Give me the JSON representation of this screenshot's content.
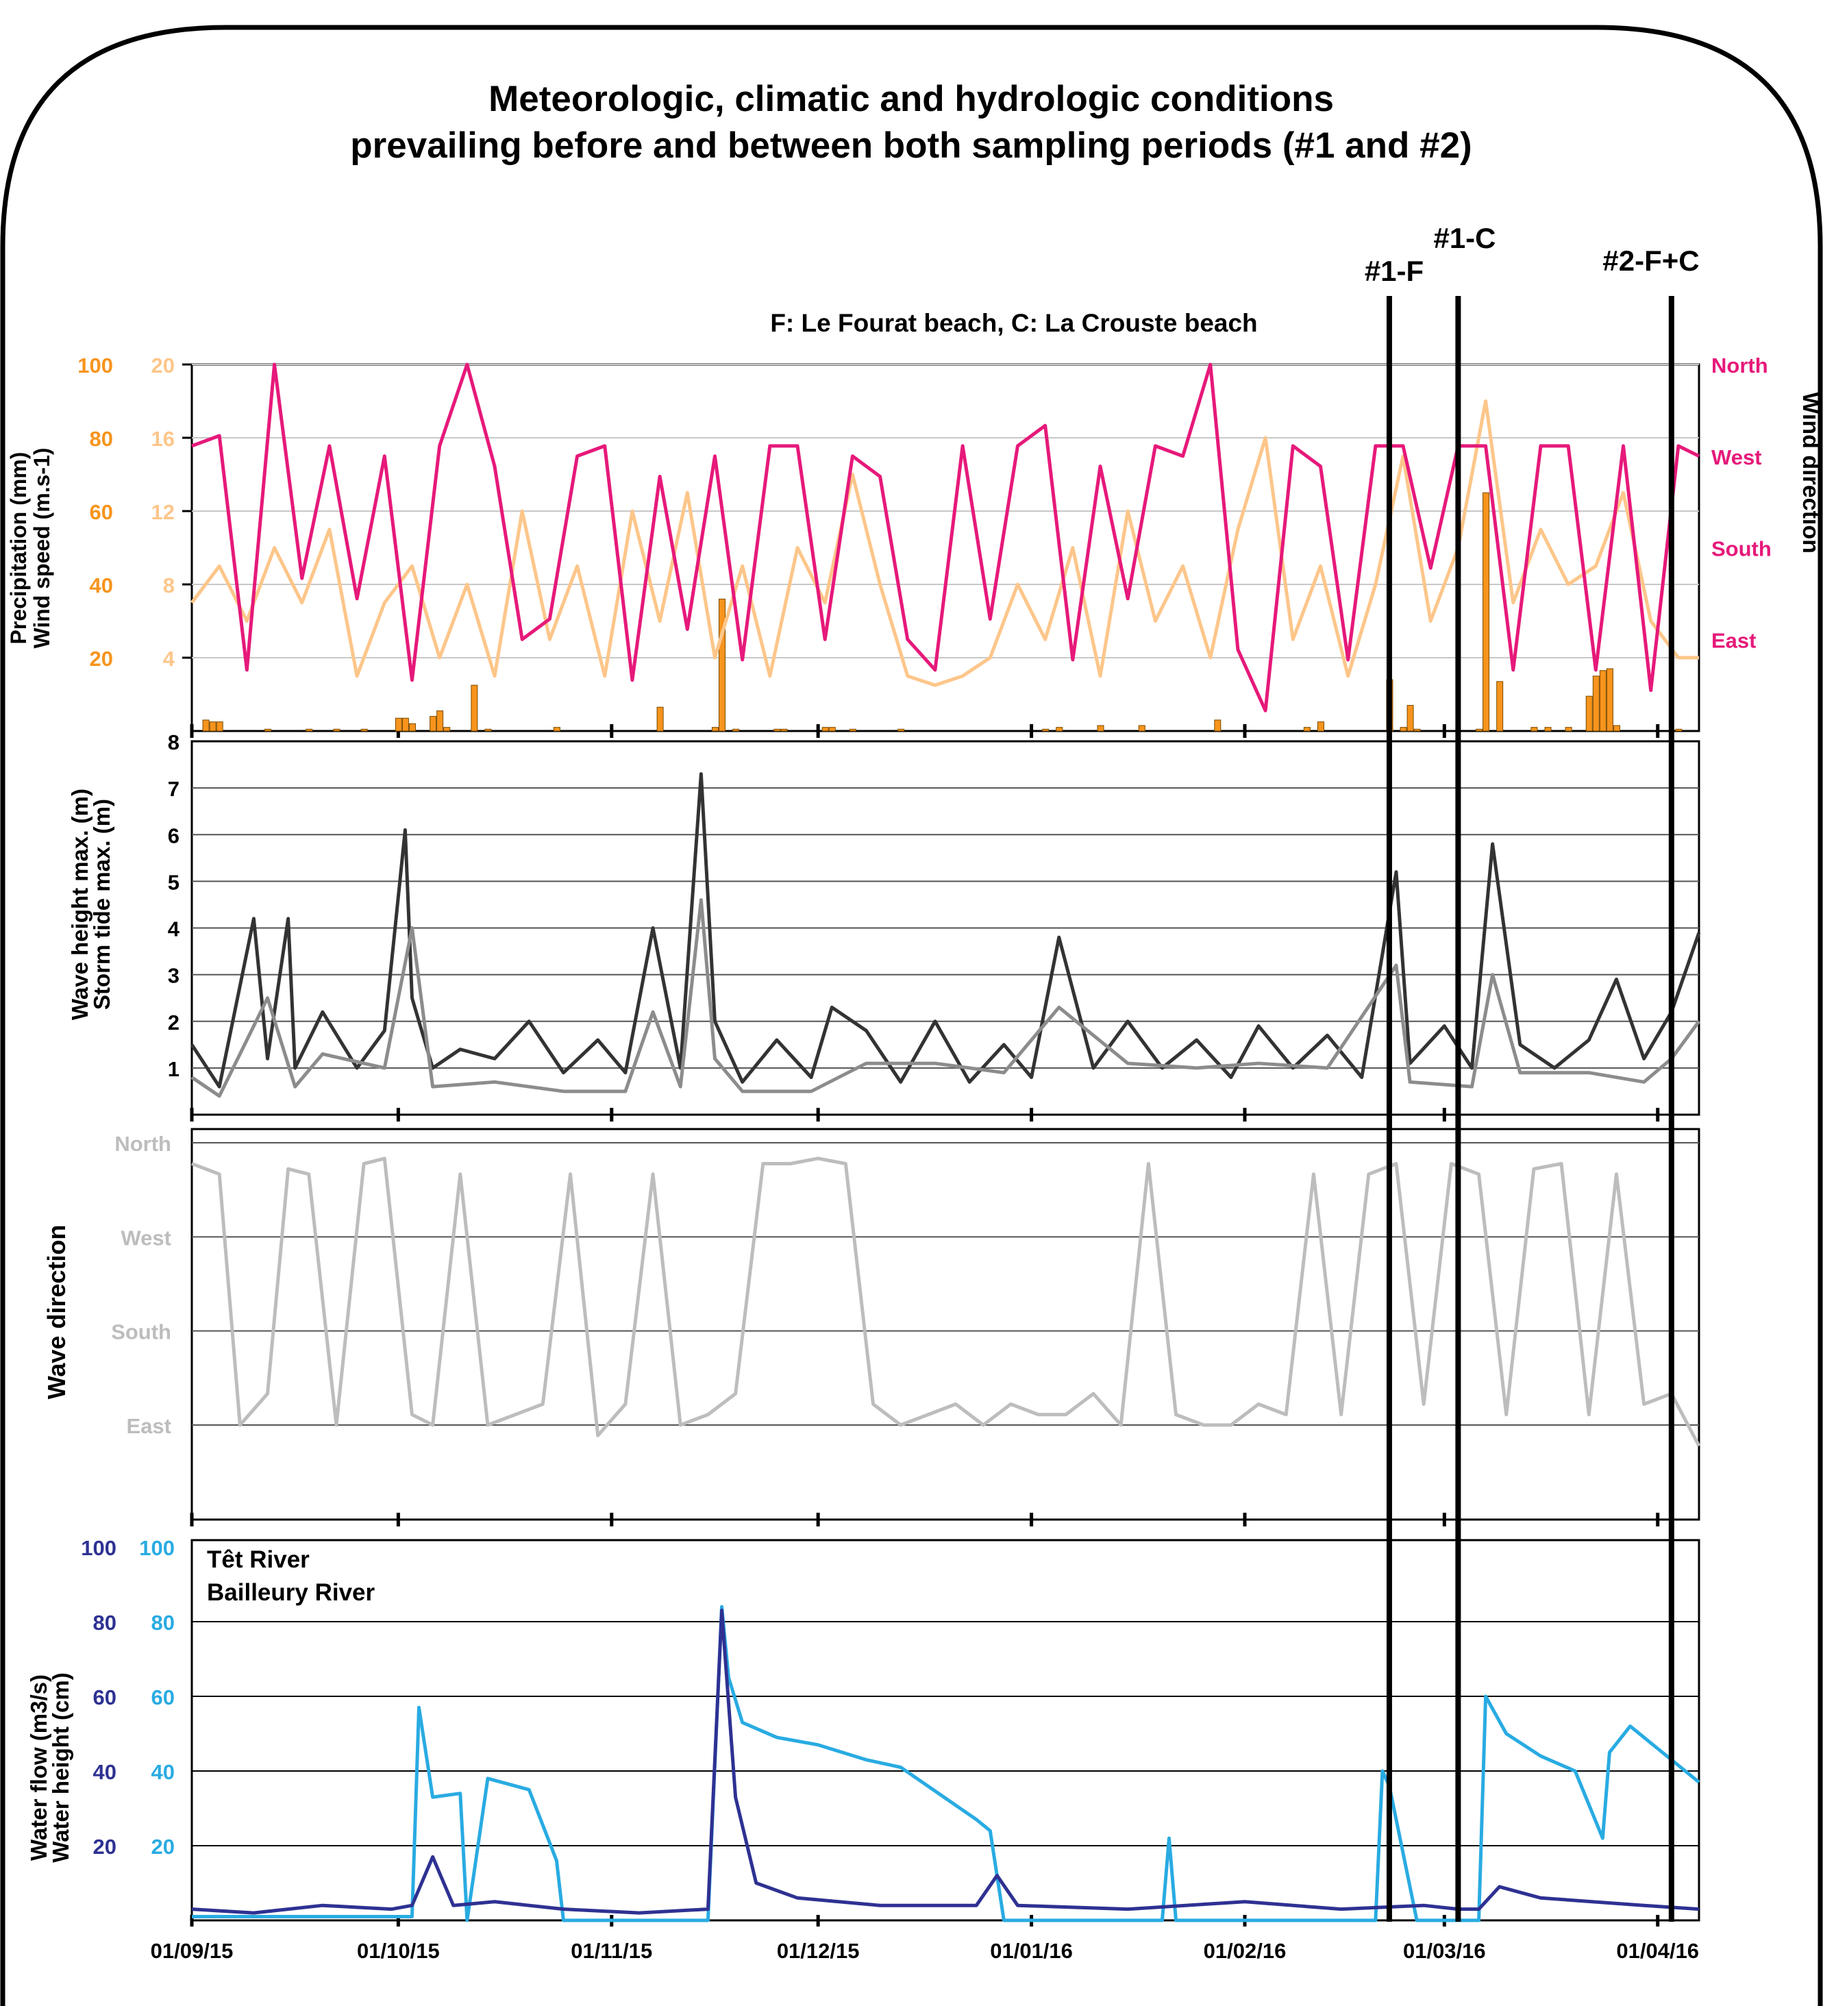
{
  "title_line1": "Meteorologic, climatic and hydrologic conditions",
  "title_line2": "prevailing before and between both sampling periods (#1 and #2)",
  "legend_beaches": "F: Le Fourat beach, C: La Crouste beach",
  "colors": {
    "precipitation": "#f7941d",
    "wind_speed": "#fdc68a",
    "wind_direction": "#e6197a",
    "wave_height": "#333333",
    "storm_tide": "#8c8c8c",
    "wave_direction": "#bdbdbd",
    "tet": "#2e3192",
    "bailleury": "#29abe2"
  },
  "chart_data": [
    {
      "type": "line",
      "panel": "meteorology",
      "x_range": [
        "2015-09-01",
        "2016-04-07"
      ],
      "x_tick_labels": [
        "01/09/15",
        "01/10/15",
        "01/11/15",
        "01/12/15",
        "01/01/16",
        "01/02/16",
        "01/03/16",
        "01/04/16"
      ],
      "y_left_label": "Precipitation (mm)",
      "y_left_range": [
        0,
        100
      ],
      "y_left_ticks": [
        "20",
        "40",
        "60",
        "80",
        "100"
      ],
      "y_left2_label": "Wind speed (m.s-1)",
      "y_left2_range": [
        0,
        20
      ],
      "y_left2_ticks": [
        "4",
        "8",
        "12",
        "16",
        "20"
      ],
      "y_right_label": "Wind direction",
      "y_right_ticks": [
        "North",
        "West",
        "South",
        "East"
      ],
      "series": [
        {
          "name": "Precipitation (mm)",
          "kind": "bar",
          "x": [
            "2015-09-03",
            "2015-09-04",
            "2015-09-05",
            "2015-09-12",
            "2015-09-18",
            "2015-09-22",
            "2015-09-26",
            "2015-10-01",
            "2015-10-02",
            "2015-10-03",
            "2015-10-06",
            "2015-10-07",
            "2015-10-08",
            "2015-10-12",
            "2015-10-14",
            "2015-10-24",
            "2015-11-08",
            "2015-11-16",
            "2015-11-17",
            "2015-11-19",
            "2015-11-25",
            "2015-11-26",
            "2015-12-02",
            "2015-12-03",
            "2015-12-06",
            "2015-12-13",
            "2016-01-03",
            "2016-01-05",
            "2016-01-11",
            "2016-01-17",
            "2016-01-28",
            "2016-02-10",
            "2016-02-12",
            "2016-02-22",
            "2016-02-24",
            "2016-02-25",
            "2016-02-26",
            "2016-03-06",
            "2016-03-07",
            "2016-03-09",
            "2016-03-14",
            "2016-03-16",
            "2016-03-19",
            "2016-03-22",
            "2016-03-23",
            "2016-03-24",
            "2016-03-25",
            "2016-03-26",
            "2016-04-04"
          ],
          "values": [
            3,
            2.5,
            2.5,
            0.5,
            0.5,
            0.5,
            0.5,
            3.5,
            3.5,
            2,
            4,
            5.5,
            1,
            12.5,
            0.5,
            1,
            6.5,
            1,
            36,
            0.5,
            0.5,
            0.5,
            1,
            1,
            0.5,
            0.5,
            0.5,
            1,
            1.5,
            1.5,
            3,
            1,
            2.5,
            14,
            1,
            7,
            0.5,
            0.5,
            65,
            13.5,
            1,
            1,
            1,
            9.5,
            15,
            16.5,
            17,
            1.5,
            0.5
          ]
        },
        {
          "name": "Wind speed (m.s-1)",
          "kind": "line",
          "x": [
            "2015-09-01",
            "2015-09-05",
            "2015-09-09",
            "2015-09-13",
            "2015-09-17",
            "2015-09-21",
            "2015-09-25",
            "2015-09-29",
            "2015-10-03",
            "2015-10-07",
            "2015-10-11",
            "2015-10-15",
            "2015-10-19",
            "2015-10-23",
            "2015-10-27",
            "2015-10-31",
            "2015-11-04",
            "2015-11-08",
            "2015-11-12",
            "2015-11-16",
            "2015-11-20",
            "2015-11-24",
            "2015-11-28",
            "2015-12-02",
            "2015-12-06",
            "2015-12-10",
            "2015-12-14",
            "2015-12-18",
            "2015-12-22",
            "2015-12-26",
            "2015-12-30",
            "2016-01-03",
            "2016-01-07",
            "2016-01-11",
            "2016-01-15",
            "2016-01-19",
            "2016-01-23",
            "2016-01-27",
            "2016-01-31",
            "2016-02-04",
            "2016-02-08",
            "2016-02-12",
            "2016-02-16",
            "2016-02-20",
            "2016-02-24",
            "2016-02-28",
            "2016-03-03",
            "2016-03-07",
            "2016-03-11",
            "2016-03-15",
            "2016-03-19",
            "2016-03-23",
            "2016-03-27",
            "2016-03-31",
            "2016-04-04",
            "2016-04-07"
          ],
          "values": [
            7,
            9,
            6,
            10,
            7,
            11,
            3,
            7,
            9,
            4,
            8,
            3,
            12,
            5,
            9,
            3,
            12,
            6,
            13,
            4,
            9,
            3,
            10,
            7,
            14,
            8,
            3,
            2.5,
            3,
            4,
            8,
            5,
            10,
            3,
            12,
            6,
            9,
            4,
            11,
            16,
            5,
            9,
            3,
            8,
            15,
            6,
            10,
            18,
            7,
            11,
            8,
            9,
            13,
            6,
            4,
            4
          ]
        },
        {
          "name": "Wind direction",
          "kind": "line",
          "scale": "North=0, West=90, South=180, East=270 (deg)",
          "x": [
            "2015-09-01",
            "2015-09-05",
            "2015-09-09",
            "2015-09-13",
            "2015-09-17",
            "2015-09-21",
            "2015-09-25",
            "2015-09-29",
            "2015-10-03",
            "2015-10-07",
            "2015-10-11",
            "2015-10-15",
            "2015-10-19",
            "2015-10-23",
            "2015-10-27",
            "2015-10-31",
            "2015-11-04",
            "2015-11-08",
            "2015-11-12",
            "2015-11-16",
            "2015-11-20",
            "2015-11-24",
            "2015-11-28",
            "2015-12-02",
            "2015-12-06",
            "2015-12-10",
            "2015-12-14",
            "2015-12-18",
            "2015-12-22",
            "2015-12-26",
            "2015-12-30",
            "2016-01-03",
            "2016-01-07",
            "2016-01-11",
            "2016-01-15",
            "2016-01-19",
            "2016-01-23",
            "2016-01-27",
            "2016-01-31",
            "2016-02-04",
            "2016-02-08",
            "2016-02-12",
            "2016-02-16",
            "2016-02-20",
            "2016-02-24",
            "2016-02-28",
            "2016-03-03",
            "2016-03-07",
            "2016-03-11",
            "2016-03-15",
            "2016-03-19",
            "2016-03-23",
            "2016-03-27",
            "2016-03-31",
            "2016-04-04",
            "2016-04-07"
          ],
          "values": [
            80,
            70,
            300,
            0,
            210,
            80,
            230,
            90,
            310,
            80,
            0,
            100,
            270,
            250,
            90,
            80,
            310,
            110,
            260,
            90,
            290,
            80,
            80,
            270,
            90,
            110,
            270,
            300,
            80,
            250,
            80,
            60,
            290,
            100,
            230,
            80,
            90,
            0,
            280,
            340,
            80,
            100,
            290,
            80,
            80,
            200,
            80,
            80,
            300,
            80,
            80,
            300,
            80,
            320,
            80,
            90
          ]
        }
      ]
    },
    {
      "type": "line",
      "panel": "waves",
      "x_range": [
        "2015-09-01",
        "2016-04-07"
      ],
      "y_label": "Wave height max. (m)",
      "y2_label": "Storm tide max. (m)",
      "y_range": [
        0,
        8
      ],
      "y_ticks": [
        "1",
        "2",
        "3",
        "4",
        "5",
        "6",
        "7",
        "8"
      ],
      "series": [
        {
          "name": "Wave height max. (m)",
          "x": [
            "2015-09-01",
            "2015-09-05",
            "2015-09-10",
            "2015-09-12",
            "2015-09-15",
            "2015-09-16",
            "2015-09-20",
            "2015-09-25",
            "2015-09-29",
            "2015-10-02",
            "2015-10-03",
            "2015-10-06",
            "2015-10-10",
            "2015-10-15",
            "2015-10-20",
            "2015-10-25",
            "2015-10-30",
            "2015-11-03",
            "2015-11-07",
            "2015-11-11",
            "2015-11-14",
            "2015-11-16",
            "2015-11-20",
            "2015-11-25",
            "2015-11-30",
            "2015-12-03",
            "2015-12-08",
            "2015-12-13",
            "2015-12-18",
            "2015-12-23",
            "2015-12-28",
            "2016-01-01",
            "2016-01-05",
            "2016-01-10",
            "2016-01-15",
            "2016-01-20",
            "2016-01-25",
            "2016-01-30",
            "2016-02-03",
            "2016-02-08",
            "2016-02-13",
            "2016-02-18",
            "2016-02-23",
            "2016-02-25",
            "2016-03-01",
            "2016-03-05",
            "2016-03-08",
            "2016-03-12",
            "2016-03-17",
            "2016-03-22",
            "2016-03-26",
            "2016-03-30",
            "2016-04-03",
            "2016-04-07"
          ],
          "values": [
            1.5,
            0.6,
            4.2,
            1.2,
            4.2,
            1.0,
            2.2,
            1.0,
            1.8,
            6.1,
            2.5,
            1.0,
            1.4,
            1.2,
            2.0,
            0.9,
            1.6,
            0.9,
            4.0,
            1.0,
            7.3,
            2.0,
            0.7,
            1.6,
            0.8,
            2.3,
            1.8,
            0.7,
            2.0,
            0.7,
            1.5,
            0.8,
            3.8,
            1.0,
            2.0,
            1.0,
            1.6,
            0.8,
            1.9,
            1.0,
            1.7,
            0.8,
            5.2,
            1.1,
            1.9,
            1.0,
            5.8,
            1.5,
            1.0,
            1.6,
            2.9,
            1.2,
            2.2,
            3.9
          ]
        },
        {
          "name": "Storm tide max. (m)",
          "x": [
            "2015-09-01",
            "2015-09-05",
            "2015-09-12",
            "2015-09-16",
            "2015-09-20",
            "2015-09-29",
            "2015-10-03",
            "2015-10-06",
            "2015-10-15",
            "2015-10-25",
            "2015-11-03",
            "2015-11-07",
            "2015-11-11",
            "2015-11-14",
            "2015-11-16",
            "2015-11-20",
            "2015-11-30",
            "2015-12-08",
            "2015-12-18",
            "2015-12-28",
            "2016-01-05",
            "2016-01-15",
            "2016-01-25",
            "2016-02-03",
            "2016-02-13",
            "2016-02-23",
            "2016-02-25",
            "2016-03-05",
            "2016-03-08",
            "2016-03-12",
            "2016-03-22",
            "2016-03-30",
            "2016-04-03",
            "2016-04-07"
          ],
          "values": [
            0.8,
            0.4,
            2.5,
            0.6,
            1.3,
            1.0,
            4.0,
            0.6,
            0.7,
            0.5,
            0.5,
            2.2,
            0.6,
            4.6,
            1.2,
            0.5,
            0.5,
            1.1,
            1.1,
            0.9,
            2.3,
            1.1,
            1.0,
            1.1,
            1.0,
            3.2,
            0.7,
            0.6,
            3.0,
            0.9,
            0.9,
            0.7,
            1.2,
            2.0
          ]
        }
      ]
    },
    {
      "type": "line",
      "panel": "wave_direction",
      "x_range": [
        "2015-09-01",
        "2016-04-07"
      ],
      "y_label": "Wave direction",
      "y_ticks": [
        "North",
        "West",
        "South",
        "East"
      ],
      "series": [
        {
          "name": "Wave direction",
          "scale": "North=0, West=90, South=180, East=270 (deg)",
          "x": [
            "2015-09-01",
            "2015-09-05",
            "2015-09-08",
            "2015-09-12",
            "2015-09-15",
            "2015-09-18",
            "2015-09-22",
            "2015-09-26",
            "2015-09-29",
            "2015-10-03",
            "2015-10-06",
            "2015-10-10",
            "2015-10-14",
            "2015-10-18",
            "2015-10-22",
            "2015-10-26",
            "2015-10-30",
            "2015-11-03",
            "2015-11-07",
            "2015-11-11",
            "2015-11-15",
            "2015-11-19",
            "2015-11-23",
            "2015-11-27",
            "2015-12-01",
            "2015-12-05",
            "2015-12-09",
            "2015-12-13",
            "2015-12-17",
            "2015-12-21",
            "2015-12-25",
            "2015-12-29",
            "2016-01-02",
            "2016-01-06",
            "2016-01-10",
            "2016-01-14",
            "2016-01-18",
            "2016-01-22",
            "2016-01-26",
            "2016-01-30",
            "2016-02-03",
            "2016-02-07",
            "2016-02-11",
            "2016-02-15",
            "2016-02-19",
            "2016-02-23",
            "2016-02-27",
            "2016-03-02",
            "2016-03-06",
            "2016-03-10",
            "2016-03-14",
            "2016-03-18",
            "2016-03-22",
            "2016-03-26",
            "2016-03-30",
            "2016-04-03",
            "2016-04-07"
          ],
          "values": [
            20,
            30,
            270,
            240,
            25,
            30,
            270,
            20,
            15,
            260,
            270,
            30,
            270,
            260,
            250,
            30,
            280,
            250,
            30,
            270,
            260,
            240,
            20,
            20,
            15,
            20,
            250,
            270,
            260,
            250,
            270,
            250,
            260,
            260,
            240,
            270,
            20,
            260,
            270,
            270,
            250,
            260,
            30,
            260,
            30,
            20,
            250,
            20,
            30,
            260,
            25,
            20,
            260,
            30,
            250,
            240,
            290
          ]
        }
      ]
    },
    {
      "type": "line",
      "panel": "rivers",
      "x_range": [
        "2015-09-01",
        "2016-04-07"
      ],
      "x_tick_labels": [
        "01/09/15",
        "01/10/15",
        "01/11/15",
        "01/12/15",
        "01/01/16",
        "01/02/16",
        "01/03/16",
        "01/04/16"
      ],
      "y_label": "Water flow (m3/s)",
      "y2_label": "Water height (cm)",
      "y_range": [
        0,
        100
      ],
      "y_ticks_left": [
        "20",
        "40",
        "60",
        "80",
        "100"
      ],
      "y_ticks_right": [
        "20",
        "40",
        "60",
        "80",
        "100"
      ],
      "series": [
        {
          "name": "Têt River",
          "x": [
            "2015-09-01",
            "2015-09-10",
            "2015-09-20",
            "2015-09-30",
            "2015-10-03",
            "2015-10-06",
            "2015-10-09",
            "2015-10-15",
            "2015-10-25",
            "2015-11-05",
            "2015-11-15",
            "2015-11-17",
            "2015-11-19",
            "2015-11-22",
            "2015-11-28",
            "2015-12-10",
            "2015-12-24",
            "2015-12-27",
            "2015-12-30",
            "2016-01-15",
            "2016-02-01",
            "2016-02-15",
            "2016-02-27",
            "2016-03-03",
            "2016-03-06",
            "2016-03-09",
            "2016-03-15",
            "2016-03-30",
            "2016-04-07"
          ],
          "values": [
            3,
            2,
            4,
            3,
            4,
            17,
            4,
            5,
            3,
            2,
            3,
            83,
            33,
            10,
            6,
            4,
            4,
            12,
            4,
            3,
            5,
            3,
            4,
            3,
            3,
            9,
            6,
            4,
            3
          ]
        },
        {
          "name": "Bailleury River",
          "x": [
            "2015-09-01",
            "2015-09-30",
            "2015-10-03",
            "2015-10-04",
            "2015-10-06",
            "2015-10-10",
            "2015-10-11",
            "2015-10-14",
            "2015-10-20",
            "2015-10-24",
            "2015-10-25",
            "2015-11-15",
            "2015-11-17",
            "2015-11-18",
            "2015-11-20",
            "2015-11-25",
            "2015-12-01",
            "2015-12-08",
            "2015-12-13",
            "2015-12-24",
            "2015-12-26",
            "2015-12-28",
            "2015-12-29",
            "2016-01-20",
            "2016-01-21",
            "2016-01-22",
            "2016-02-20",
            "2016-02-21",
            "2016-02-22",
            "2016-02-26",
            "2016-03-06",
            "2016-03-07",
            "2016-03-10",
            "2016-03-15",
            "2016-03-20",
            "2016-03-24",
            "2016-03-25",
            "2016-03-28",
            "2016-04-07"
          ],
          "values": [
            1,
            1,
            1,
            57,
            33,
            34,
            0,
            38,
            35,
            16,
            0,
            0,
            84,
            65,
            53,
            49,
            47,
            43,
            41,
            27,
            24,
            0,
            0,
            0,
            22,
            0,
            0,
            40,
            36,
            0,
            0,
            60,
            50,
            44,
            40,
            22,
            45,
            52,
            37
          ]
        }
      ]
    }
  ],
  "events": [
    {
      "label": "#1-F",
      "date": "2016-02-22"
    },
    {
      "label": "#1-C",
      "date": "2016-03-03"
    },
    {
      "label": "#2-F+C",
      "date": "2016-04-03"
    }
  ]
}
